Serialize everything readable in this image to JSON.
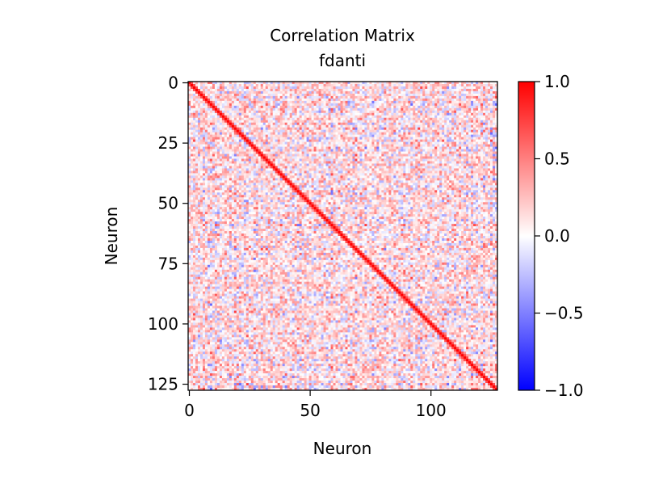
{
  "chart_data": {
    "type": "heatmap",
    "title": "Correlation Matrix",
    "subtitle": "fdanti",
    "xlabel": "Neuron",
    "ylabel": "Neuron",
    "n": 128,
    "xticks": [
      0,
      50,
      100
    ],
    "yticks": [
      0,
      25,
      50,
      75,
      100,
      125
    ],
    "x_range": [
      0,
      127
    ],
    "y_range": [
      0,
      127
    ],
    "y_inverted": true,
    "colormap": "bwr",
    "colors": {
      "low": "#0000ff",
      "mid": "#ffffff",
      "high": "#ff0000"
    },
    "colorbar": {
      "range": [
        -1.0,
        1.0
      ],
      "ticks": [
        -1.0,
        -0.5,
        0.0,
        0.5,
        1.0
      ],
      "tick_labels": [
        "−1.0",
        "−0.5",
        "0.0",
        "0.5",
        "1.0"
      ]
    },
    "diagonal_value": 1.0,
    "typical_offdiag_range": [
      -0.4,
      0.6
    ],
    "grid": false
  }
}
